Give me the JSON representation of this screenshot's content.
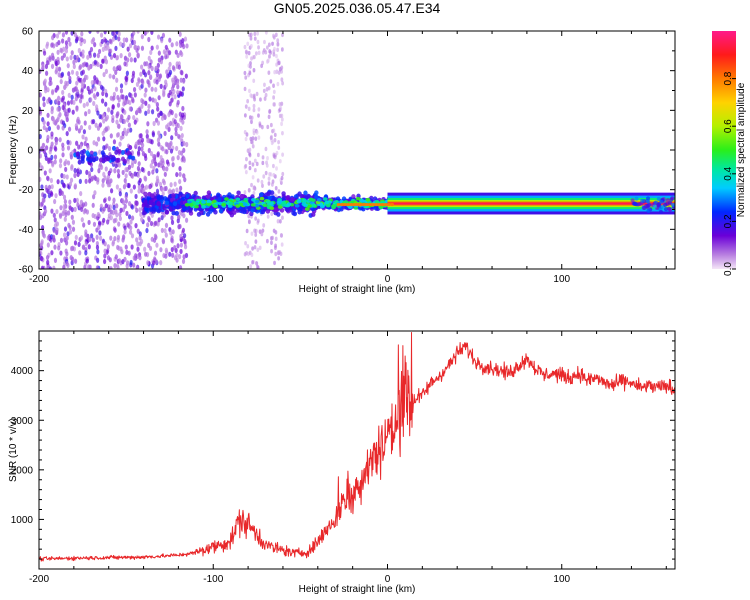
{
  "title": "GN05.2025.036.05.47.E34",
  "colors": {
    "line": "#e8282a",
    "axis": "#000000",
    "background": "#ffffff"
  },
  "chart_data": [
    {
      "type": "heatmap",
      "xlabel": "Height of straight line (km)",
      "ylabel": "Frequency (Hz)",
      "xlim": [
        -200,
        165
      ],
      "ylim": [
        -60,
        60
      ],
      "xticks": [
        -200,
        -100,
        0,
        100
      ],
      "xtick_labels": [
        "-200",
        "-100",
        "0",
        "100"
      ],
      "yticks": [
        -60,
        -40,
        -20,
        0,
        20,
        40,
        60
      ],
      "ytick_labels": [
        "-60",
        "-40",
        "-20",
        "0",
        "20",
        "40",
        "60"
      ],
      "colorbar": {
        "label": "Normalized spectral amplitude",
        "range": [
          0,
          1
        ],
        "ticks": [
          0.0,
          0.2,
          0.4,
          0.6,
          0.8
        ],
        "tick_labels": [
          "0.0",
          "0.2",
          "0.4",
          "0.6",
          "0.8"
        ]
      },
      "features": [
        {
          "x_range": [
            -200,
            -115
          ],
          "freq_range": [
            -60,
            60
          ],
          "amplitude": "low",
          "note": "scattered noise"
        },
        {
          "x_range": [
            -80,
            -60
          ],
          "freq_range": [
            -60,
            60
          ],
          "amplitude": "very low"
        },
        {
          "x_range": [
            -140,
            5
          ],
          "freq_center": -27,
          "freq_halfwidth": 6,
          "amplitude": 0.3
        },
        {
          "x_range": [
            5,
            165
          ],
          "freq_center": -27,
          "freq_halfwidth": 1.5,
          "amplitude": 0.9
        }
      ]
    },
    {
      "type": "line",
      "xlabel": "Height of straight line (km)",
      "ylabel": "SNR (10 * v/v)",
      "xlim": [
        -200,
        165
      ],
      "ylim": [
        0,
        4800
      ],
      "xticks": [
        -200,
        -100,
        0,
        100
      ],
      "xtick_labels": [
        "-200",
        "-100",
        "0",
        "100"
      ],
      "yticks": [
        1000,
        2000,
        3000,
        4000
      ],
      "ytick_labels": [
        "1000",
        "2000",
        "3000",
        "4000"
      ],
      "series": [
        {
          "x": [
            -200,
            -180,
            -160,
            -140,
            -120,
            -110,
            -100,
            -95,
            -90,
            -85,
            -80,
            -75,
            -70,
            -65,
            -60,
            -55,
            -50,
            -45,
            -40,
            -35,
            -30,
            -25,
            -20,
            -15,
            -10,
            -5,
            0,
            5,
            8,
            10,
            15,
            20,
            25,
            30,
            35,
            40,
            45,
            50,
            55,
            60,
            65,
            70,
            75,
            80,
            85,
            90,
            95,
            100,
            105,
            110,
            115,
            120,
            125,
            130,
            135,
            140,
            145,
            150,
            155,
            160,
            165
          ],
          "y": [
            200,
            220,
            230,
            240,
            280,
            330,
            450,
            500,
            560,
            1000,
            900,
            700,
            500,
            420,
            380,
            330,
            320,
            360,
            550,
            800,
            1000,
            1400,
            1500,
            1800,
            2200,
            2400,
            2700,
            2900,
            3100,
            3400,
            3400,
            3500,
            3750,
            3900,
            4100,
            4350,
            4500,
            4200,
            4100,
            4050,
            4000,
            3950,
            4100,
            4250,
            4050,
            3900,
            3950,
            3900,
            3850,
            3950,
            3800,
            3850,
            3750,
            3700,
            3800,
            3750,
            3650,
            3700,
            3650,
            3700,
            3600
          ]
        }
      ]
    }
  ]
}
